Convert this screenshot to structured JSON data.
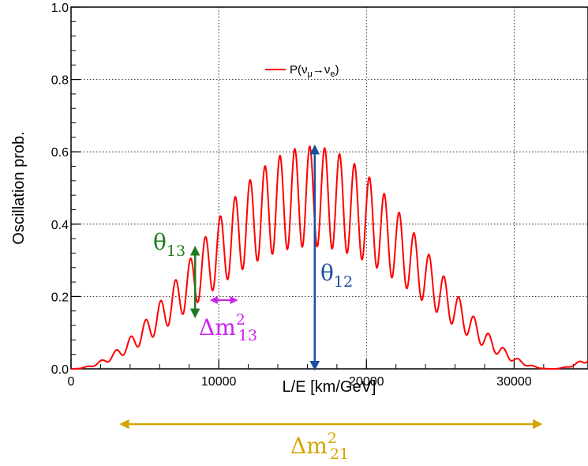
{
  "chart_data": {
    "type": "line",
    "xlabel": "L/E [km/GeV]",
    "ylabel": "Oscillation prob.",
    "xlim": [
      0,
      35000
    ],
    "ylim": [
      0,
      1.0
    ],
    "x_ticks": [
      0,
      10000,
      20000,
      30000
    ],
    "x_tick_labels": [
      "0",
      "10000",
      "20000",
      "30000"
    ],
    "y_ticks": [
      0,
      0.2,
      0.4,
      0.6,
      0.8,
      1.0
    ],
    "y_tick_labels": [
      "0.0",
      "0.2",
      "0.4",
      "0.6",
      "0.8",
      "1.0"
    ],
    "grid": true,
    "legend_position": "top-center",
    "series": [
      {
        "name": "P(ν_μ→ν_e)",
        "color": "#ff0000",
        "solar_amplitude": 0.615,
        "solar_zero_L_over_E": 32500,
        "atm_period_L_over_E": 1010,
        "description_peaks": [
          {
            "x": 8400,
            "y": 0.35
          },
          {
            "x": 16400,
            "y": 0.615
          },
          {
            "x": 26400,
            "y": 0.33
          }
        ]
      }
    ],
    "annotations": [
      {
        "name": "theta13",
        "label_base": "θ",
        "label_sub": "13",
        "color": "#1f7a1f",
        "x_from": 8400,
        "y_from": 0.145,
        "x_to": 8400,
        "y_to": 0.335
      },
      {
        "name": "dm13",
        "label_base": "Δm",
        "label_sup": "2",
        "label_sub": "13",
        "color": "#cc22ee",
        "x_from": 9500,
        "y_from": 0.19,
        "x_to": 11200,
        "y_to": 0.19
      },
      {
        "name": "theta12",
        "label_base": "θ",
        "label_sub": "12",
        "color": "#1a4fa0",
        "x_from": 16500,
        "y_from": 0.0,
        "x_to": 16500,
        "y_to": 0.615
      },
      {
        "name": "dm21",
        "label_base": "Δm",
        "label_sup": "2",
        "label_sub": "21",
        "color": "#d4a400",
        "x_from": 1800,
        "x_to": 31800
      }
    ]
  },
  "legend": {
    "label_text": "P(ν",
    "label_sub1": "μ",
    "label_arrow": "→ν",
    "label_sub2": "e",
    "label_close": ")"
  }
}
